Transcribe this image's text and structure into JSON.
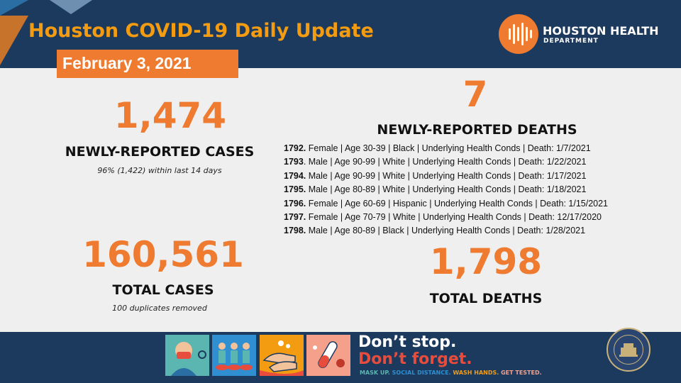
{
  "header": {
    "title": "Houston COVID-19 Daily Update",
    "date": "February 3, 2021",
    "org_name": "HOUSTON HEALTH",
    "org_sub": "DEPARTMENT"
  },
  "cases": {
    "new_count": "1,474",
    "new_label": "NEWLY-REPORTED CASES",
    "new_note": "96% (1,422) within last 14 days",
    "total_count": "160,561",
    "total_label": "TOTAL CASES",
    "total_note": "100 duplicates removed"
  },
  "deaths": {
    "new_count": "7",
    "new_label": "NEWLY-REPORTED DEATHS",
    "total_count": "1,798",
    "total_label": "TOTAL DEATHS",
    "list": [
      {
        "id": "1792.",
        "text": " Female |  Age 30-39 | Black | Underlying Health Conds | Death: 1/7/2021"
      },
      {
        "id": "1793",
        "text": ". Male | Age 90-99 | White | Underlying Health Conds | Death: 1/22/2021"
      },
      {
        "id": "1794.",
        "text": " Male | Age 90-99 | White | Underlying Health Conds | Death: 1/17/2021"
      },
      {
        "id": "1795.",
        "text": " Male | Age 80-89 | White | Underlying Health Conds | Death: 1/18/2021"
      },
      {
        "id": "1796.",
        "text": " Female | Age 60-69 | Hispanic | Underlying Health Conds | Death: 1/15/2021"
      },
      {
        "id": "1797.",
        "text": " Female | Age 70-79 | White | Underlying Health Conds | Death: 12/17/2020"
      },
      {
        "id": "1798.",
        "text": " Male | Age 80-89 | Black | Underlying  Health Conds | Death: 1/28/2021"
      }
    ]
  },
  "footer": {
    "line1": "Don’t stop.",
    "line2": "Don’t forget.",
    "tag_mask": "MASK UP. ",
    "tag_distance": "SOCIAL DISTANCE. ",
    "tag_wash": "WASH HANDS. ",
    "tag_test": "GET TESTED.",
    "icons": [
      "mask-icon",
      "social-distance-icon",
      "wash-hands-icon",
      "test-tube-icon"
    ]
  },
  "colors": {
    "navy": "#1c3a5e",
    "orange": "#ee7b2f",
    "background": "#efefef",
    "red": "#e74c3c"
  }
}
